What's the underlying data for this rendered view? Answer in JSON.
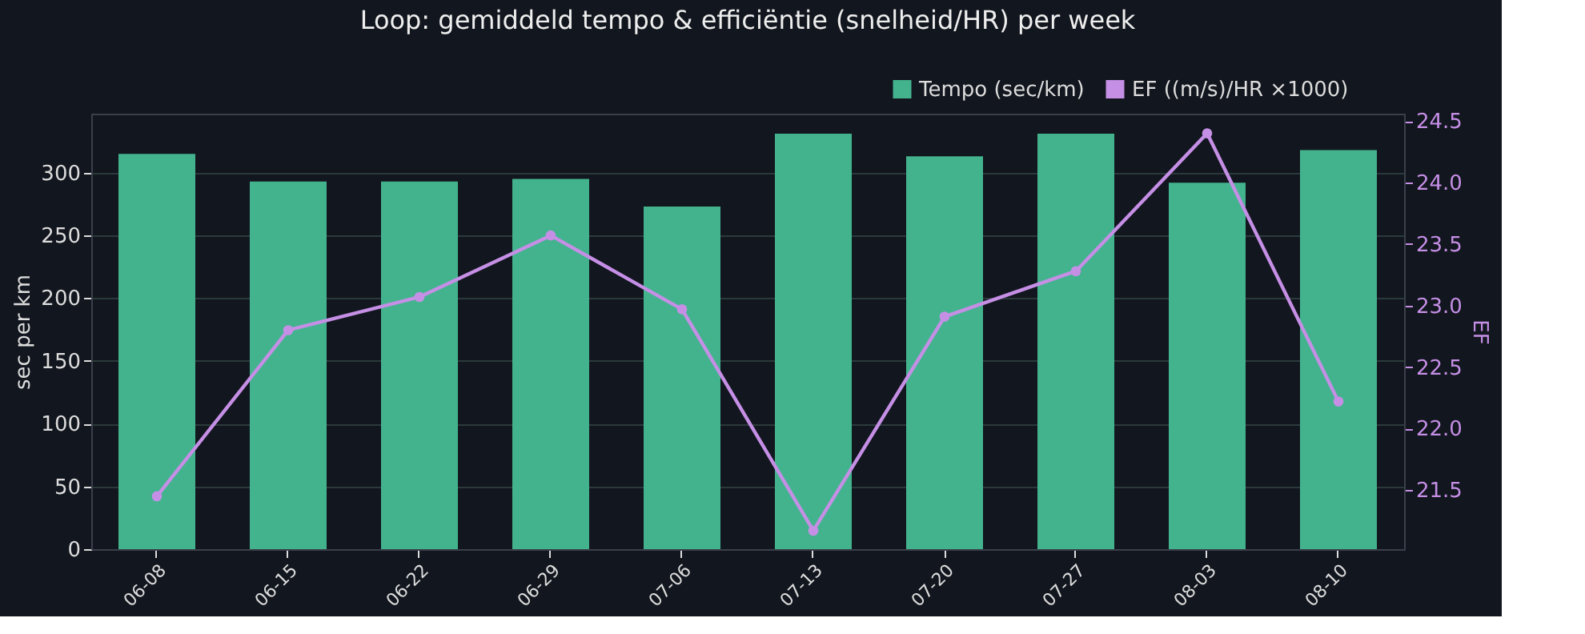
{
  "chart_data": {
    "type": "bar",
    "title": "Loop: gemiddeld tempo & efficiëntie (snelheid/HR) per week",
    "categories": [
      "06-08",
      "06-15",
      "06-22",
      "06-29",
      "07-06",
      "07-13",
      "07-20",
      "07-27",
      "08-03",
      "08-10"
    ],
    "series": [
      {
        "name": "Tempo (sec/km)",
        "color": "#43b38e",
        "values": [
          315,
          293,
          293,
          295,
          273,
          331,
          313,
          331,
          292,
          318
        ]
      },
      {
        "name": "EF ((m/s)/HR ×1000)",
        "type": "line",
        "axis": "y2",
        "color": "#c58fe6",
        "values": [
          21.45,
          22.8,
          23.07,
          23.57,
          22.97,
          21.17,
          22.91,
          23.28,
          24.4,
          22.22
        ]
      }
    ],
    "ylabel": "sec per km",
    "y2label": "EF",
    "ylim": [
      0,
      347
    ],
    "yticks": [
      0,
      50,
      100,
      150,
      200,
      250,
      300
    ],
    "y2lim": [
      21.02,
      24.56
    ],
    "y2ticks": [
      21.5,
      {
        "value": 22,
        "label": "22.0"
      },
      22.5,
      {
        "value": 23,
        "label": "23.0"
      },
      23.5,
      {
        "value": 24,
        "label": "24.0"
      },
      24.5
    ],
    "grid": "y",
    "legend": "top right",
    "marker": "circle",
    "line_style": "solid"
  }
}
